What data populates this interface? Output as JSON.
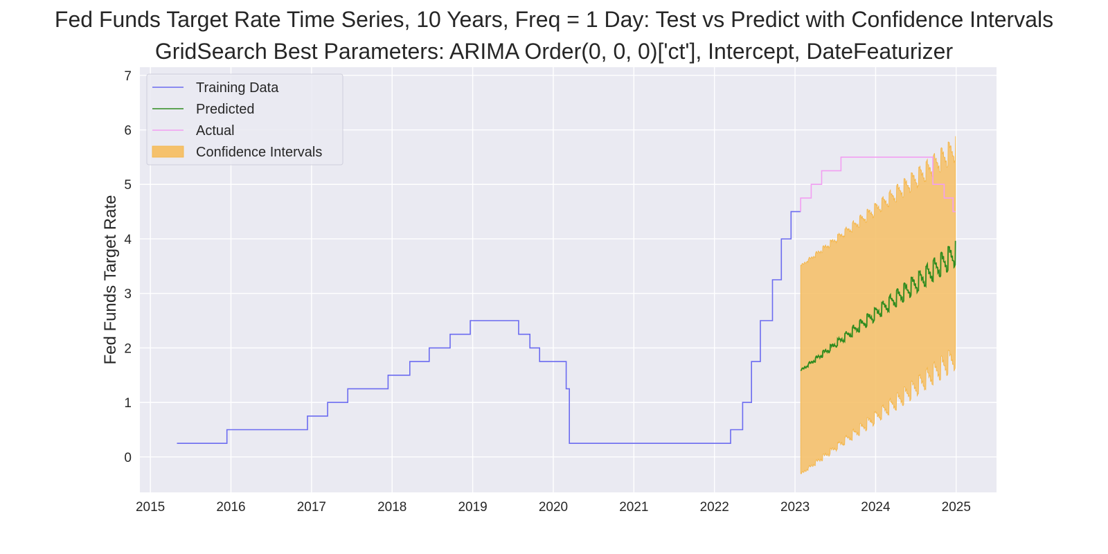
{
  "chart_data": {
    "type": "line",
    "title": "Fed Funds Target Rate Time Series, 10 Years, Freq = 1 Day: Test vs Predict with Confidence Intervals",
    "subtitle": "GridSearch Best Parameters: ARIMA Order(0, 0, 0)['ct'], Intercept, DateFeaturizer",
    "xlabel": "",
    "ylabel": "Fed Funds Target Rate",
    "xlim": [
      2014.87,
      2025.5
    ],
    "ylim": [
      -0.65,
      7.15
    ],
    "x_ticks": [
      "2015",
      "2016",
      "2017",
      "2018",
      "2019",
      "2020",
      "2021",
      "2022",
      "2023",
      "2024",
      "2025"
    ],
    "y_ticks": [
      "0",
      "1",
      "2",
      "3",
      "4",
      "5",
      "6",
      "7"
    ],
    "grid": true,
    "legend_position": "top-left",
    "colors": {
      "background": "#eaeaf2",
      "grid": "#ffffff",
      "training": "#6b6bf0",
      "predicted": "#2e8b1e",
      "actual": "#f29ef2",
      "ci": "#f5c16c",
      "ci_edge": "#f4b443"
    },
    "series": [
      {
        "name": "Training Data",
        "style": "step",
        "points": [
          [
            2015.33,
            0.25
          ],
          [
            2015.95,
            0.25
          ],
          [
            2015.95,
            0.5
          ],
          [
            2016.95,
            0.5
          ],
          [
            2016.95,
            0.75
          ],
          [
            2017.2,
            0.75
          ],
          [
            2017.2,
            1.0
          ],
          [
            2017.45,
            1.0
          ],
          [
            2017.45,
            1.25
          ],
          [
            2017.95,
            1.25
          ],
          [
            2017.95,
            1.5
          ],
          [
            2018.22,
            1.5
          ],
          [
            2018.22,
            1.75
          ],
          [
            2018.46,
            1.75
          ],
          [
            2018.46,
            2.0
          ],
          [
            2018.72,
            2.0
          ],
          [
            2018.72,
            2.25
          ],
          [
            2018.97,
            2.25
          ],
          [
            2018.97,
            2.5
          ],
          [
            2019.57,
            2.5
          ],
          [
            2019.57,
            2.25
          ],
          [
            2019.71,
            2.25
          ],
          [
            2019.71,
            2.0
          ],
          [
            2019.83,
            2.0
          ],
          [
            2019.83,
            1.75
          ],
          [
            2020.16,
            1.75
          ],
          [
            2020.16,
            1.25
          ],
          [
            2020.2,
            1.25
          ],
          [
            2020.2,
            0.25
          ],
          [
            2022.2,
            0.25
          ],
          [
            2022.2,
            0.5
          ],
          [
            2022.35,
            0.5
          ],
          [
            2022.35,
            1.0
          ],
          [
            2022.46,
            1.0
          ],
          [
            2022.46,
            1.75
          ],
          [
            2022.57,
            1.75
          ],
          [
            2022.57,
            2.5
          ],
          [
            2022.72,
            2.5
          ],
          [
            2022.72,
            3.25
          ],
          [
            2022.83,
            3.25
          ],
          [
            2022.83,
            4.0
          ],
          [
            2022.95,
            4.0
          ],
          [
            2022.95,
            4.5
          ],
          [
            2023.07,
            4.5
          ]
        ]
      },
      {
        "name": "Predicted",
        "style": "sawtooth",
        "x_start": 2023.07,
        "x_end": 2024.99,
        "y_start": 1.58,
        "y_end": 3.65,
        "amplitude_start": 0.03,
        "amplitude_end": 0.55,
        "cycles": 21
      },
      {
        "name": "Actual",
        "style": "step",
        "points": [
          [
            2023.07,
            4.5
          ],
          [
            2023.07,
            4.75
          ],
          [
            2023.2,
            4.75
          ],
          [
            2023.2,
            5.0
          ],
          [
            2023.33,
            5.0
          ],
          [
            2023.33,
            5.25
          ],
          [
            2023.57,
            5.25
          ],
          [
            2023.57,
            5.5
          ],
          [
            2024.71,
            5.5
          ],
          [
            2024.71,
            5.0
          ],
          [
            2024.85,
            5.0
          ],
          [
            2024.85,
            4.75
          ],
          [
            2024.96,
            4.75
          ],
          [
            2024.96,
            4.5
          ],
          [
            2024.99,
            4.5
          ]
        ]
      }
    ],
    "confidence_interval": {
      "name": "Confidence Intervals",
      "x_start": 2023.07,
      "x_end": 2024.99,
      "upper_offset": 1.92,
      "lower_offset": -1.9
    }
  }
}
